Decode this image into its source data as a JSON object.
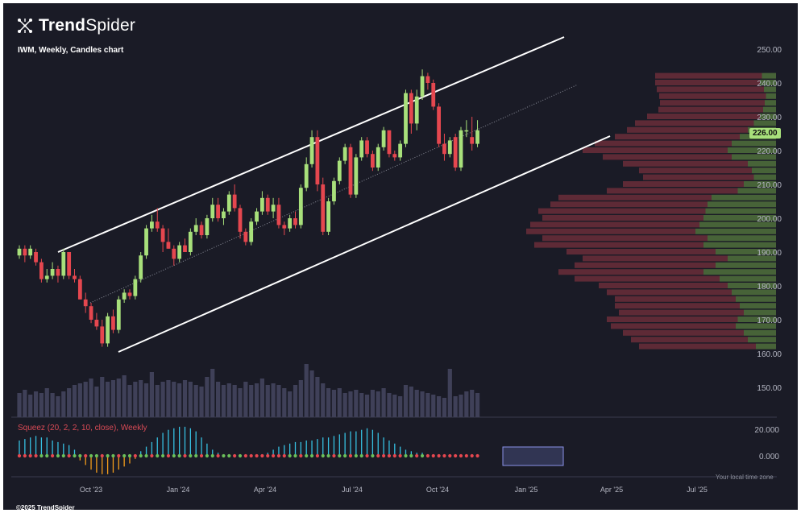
{
  "brand": {
    "name_bold": "Trend",
    "name_light": "Spider",
    "icon": "trendspider-logo-icon"
  },
  "chart_title": "IWM, Weekly, Candles chart",
  "indicator_label": "Squeez (20, 2, 2, 10, close), Weekly",
  "timezone_note": "Your local time zone",
  "copyright": "©2025 TrendSpider",
  "last_price_label": "226.00",
  "colors": {
    "background": "#1a1b26",
    "up": "#a8e07b",
    "down": "#e5474f",
    "channel": "#ffffff",
    "volume": "#3f4058",
    "squeeze_pos": "#36bfe0",
    "squeeze_neg": "#f39c1b",
    "dot_red": "#e5474f",
    "dot_green": "#6bbf5a"
  },
  "chart_data": {
    "type": "candlestick",
    "symbol": "IWM",
    "interval": "Weekly",
    "y_ticks": [
      "250.00",
      "240.00",
      "230.00",
      "220.00",
      "210.00",
      "200.00",
      "190.00",
      "180.00",
      "170.00",
      "160.00",
      "150.00"
    ],
    "x_ticks": [
      "Oct '23",
      "Jan '24",
      "Apr '24",
      "Jul '24",
      "Oct '24",
      "Jan '25",
      "Apr '25",
      "Jul '25"
    ],
    "ylim": [
      146,
      252
    ],
    "squeeze_ticks": [
      "20.000",
      "0.000"
    ],
    "candles": [
      {
        "o": 189,
        "h": 192,
        "l": 188,
        "c": 191
      },
      {
        "o": 191,
        "h": 192,
        "l": 187,
        "c": 189
      },
      {
        "o": 189,
        "h": 192,
        "l": 188,
        "c": 191
      },
      {
        "o": 190,
        "h": 191,
        "l": 186,
        "c": 187
      },
      {
        "o": 187,
        "h": 188,
        "l": 181,
        "c": 182
      },
      {
        "o": 182,
        "h": 185,
        "l": 181,
        "c": 183
      },
      {
        "o": 183,
        "h": 187,
        "l": 182,
        "c": 185
      },
      {
        "o": 185,
        "h": 186,
        "l": 181,
        "c": 183
      },
      {
        "o": 183,
        "h": 191,
        "l": 182,
        "c": 190
      },
      {
        "o": 190,
        "h": 190,
        "l": 182,
        "c": 183
      },
      {
        "o": 183,
        "h": 185,
        "l": 181,
        "c": 182
      },
      {
        "o": 182,
        "h": 183,
        "l": 176,
        "c": 176
      },
      {
        "o": 176,
        "h": 178,
        "l": 172,
        "c": 174
      },
      {
        "o": 174,
        "h": 175,
        "l": 169,
        "c": 170
      },
      {
        "o": 170,
        "h": 172,
        "l": 167,
        "c": 168
      },
      {
        "o": 168,
        "h": 170,
        "l": 162,
        "c": 163
      },
      {
        "o": 163,
        "h": 172,
        "l": 162,
        "c": 171
      },
      {
        "o": 171,
        "h": 173,
        "l": 166,
        "c": 167
      },
      {
        "o": 167,
        "h": 177,
        "l": 166,
        "c": 176
      },
      {
        "o": 176,
        "h": 179,
        "l": 175,
        "c": 178
      },
      {
        "o": 178,
        "h": 179,
        "l": 176,
        "c": 177
      },
      {
        "o": 177,
        "h": 183,
        "l": 176,
        "c": 182
      },
      {
        "o": 182,
        "h": 190,
        "l": 181,
        "c": 189
      },
      {
        "o": 189,
        "h": 198,
        "l": 188,
        "c": 197
      },
      {
        "o": 197,
        "h": 201,
        "l": 196,
        "c": 199
      },
      {
        "o": 199,
        "h": 203,
        "l": 196,
        "c": 197
      },
      {
        "o": 197,
        "h": 198,
        "l": 190,
        "c": 193
      },
      {
        "o": 193,
        "h": 197,
        "l": 191,
        "c": 191
      },
      {
        "o": 191,
        "h": 192,
        "l": 186,
        "c": 188
      },
      {
        "o": 188,
        "h": 193,
        "l": 187,
        "c": 192
      },
      {
        "o": 192,
        "h": 194,
        "l": 190,
        "c": 190
      },
      {
        "o": 190,
        "h": 197,
        "l": 189,
        "c": 196
      },
      {
        "o": 196,
        "h": 200,
        "l": 195,
        "c": 198
      },
      {
        "o": 198,
        "h": 199,
        "l": 194,
        "c": 195
      },
      {
        "o": 195,
        "h": 201,
        "l": 194,
        "c": 200
      },
      {
        "o": 200,
        "h": 206,
        "l": 199,
        "c": 204
      },
      {
        "o": 204,
        "h": 206,
        "l": 199,
        "c": 200
      },
      {
        "o": 200,
        "h": 203,
        "l": 198,
        "c": 202
      },
      {
        "o": 202,
        "h": 208,
        "l": 201,
        "c": 207
      },
      {
        "o": 207,
        "h": 210,
        "l": 202,
        "c": 203
      },
      {
        "o": 203,
        "h": 204,
        "l": 194,
        "c": 196
      },
      {
        "o": 196,
        "h": 197,
        "l": 192,
        "c": 193
      },
      {
        "o": 193,
        "h": 200,
        "l": 192,
        "c": 199
      },
      {
        "o": 199,
        "h": 203,
        "l": 198,
        "c": 202
      },
      {
        "o": 202,
        "h": 208,
        "l": 201,
        "c": 206
      },
      {
        "o": 206,
        "h": 207,
        "l": 201,
        "c": 202
      },
      {
        "o": 202,
        "h": 206,
        "l": 200,
        "c": 204
      },
      {
        "o": 204,
        "h": 206,
        "l": 197,
        "c": 198
      },
      {
        "o": 198,
        "h": 199,
        "l": 195,
        "c": 197
      },
      {
        "o": 197,
        "h": 201,
        "l": 196,
        "c": 200
      },
      {
        "o": 200,
        "h": 202,
        "l": 197,
        "c": 198
      },
      {
        "o": 198,
        "h": 210,
        "l": 197,
        "c": 209
      },
      {
        "o": 209,
        "h": 218,
        "l": 208,
        "c": 216
      },
      {
        "o": 216,
        "h": 226,
        "l": 215,
        "c": 224
      },
      {
        "o": 224,
        "h": 226,
        "l": 208,
        "c": 210
      },
      {
        "o": 210,
        "h": 212,
        "l": 195,
        "c": 196
      },
      {
        "o": 196,
        "h": 206,
        "l": 195,
        "c": 205
      },
      {
        "o": 205,
        "h": 212,
        "l": 204,
        "c": 211
      },
      {
        "o": 211,
        "h": 218,
        "l": 210,
        "c": 217
      },
      {
        "o": 217,
        "h": 222,
        "l": 216,
        "c": 221
      },
      {
        "o": 221,
        "h": 222,
        "l": 206,
        "c": 207
      },
      {
        "o": 207,
        "h": 219,
        "l": 206,
        "c": 218
      },
      {
        "o": 218,
        "h": 224,
        "l": 217,
        "c": 223
      },
      {
        "o": 223,
        "h": 224,
        "l": 218,
        "c": 219
      },
      {
        "o": 219,
        "h": 220,
        "l": 214,
        "c": 215
      },
      {
        "o": 215,
        "h": 222,
        "l": 214,
        "c": 221
      },
      {
        "o": 221,
        "h": 227,
        "l": 220,
        "c": 226
      },
      {
        "o": 226,
        "h": 226,
        "l": 218,
        "c": 219
      },
      {
        "o": 219,
        "h": 220,
        "l": 217,
        "c": 218
      },
      {
        "o": 218,
        "h": 223,
        "l": 217,
        "c": 222
      },
      {
        "o": 222,
        "h": 238,
        "l": 221,
        "c": 237
      },
      {
        "o": 237,
        "h": 238,
        "l": 225,
        "c": 228
      },
      {
        "o": 228,
        "h": 238,
        "l": 226,
        "c": 236
      },
      {
        "o": 236,
        "h": 244,
        "l": 235,
        "c": 242
      },
      {
        "o": 242,
        "h": 243,
        "l": 238,
        "c": 240
      },
      {
        "o": 240,
        "h": 241,
        "l": 232,
        "c": 233
      },
      {
        "o": 233,
        "h": 234,
        "l": 221,
        "c": 222
      },
      {
        "o": 222,
        "h": 225,
        "l": 217,
        "c": 219
      },
      {
        "o": 219,
        "h": 224,
        "l": 218,
        "c": 223
      },
      {
        "o": 224,
        "h": 225,
        "l": 214,
        "c": 215
      },
      {
        "o": 215,
        "h": 227,
        "l": 214,
        "c": 226
      },
      {
        "o": 226,
        "h": 229,
        "l": 224,
        "c": 226
      },
      {
        "o": 224,
        "h": 230,
        "l": 220,
        "c": 222
      },
      {
        "o": 222,
        "h": 229,
        "l": 221,
        "c": 226
      }
    ],
    "volume": [
      30,
      34,
      28,
      32,
      30,
      36,
      30,
      26,
      32,
      36,
      40,
      42,
      44,
      48,
      38,
      50,
      44,
      46,
      48,
      52,
      40,
      44,
      46,
      42,
      56,
      40,
      44,
      46,
      44,
      42,
      46,
      44,
      40,
      38,
      50,
      60,
      44,
      40,
      42,
      40,
      36,
      44,
      40,
      42,
      48,
      40,
      42,
      40,
      36,
      32,
      40,
      46,
      66,
      58,
      50,
      42,
      36,
      34,
      36,
      30,
      32,
      34,
      30,
      28,
      34,
      32,
      36,
      30,
      28,
      26,
      40,
      38,
      34,
      32,
      30,
      28,
      26,
      24,
      60,
      26,
      28,
      32,
      34,
      30
    ],
    "squeeze": [
      10,
      11,
      12,
      13,
      12,
      12,
      10,
      9,
      8,
      7,
      4,
      -3,
      -6,
      -9,
      -11,
      -12,
      -12,
      -11,
      -9,
      -7,
      -5,
      -2,
      3,
      6,
      9,
      12,
      15,
      17,
      18,
      19,
      19,
      18,
      16,
      12,
      8,
      4,
      2,
      1,
      1,
      0,
      -1,
      -1,
      -1,
      0,
      1,
      2,
      4,
      6,
      7,
      8,
      9,
      9,
      10,
      10,
      11,
      12,
      12,
      13,
      14,
      15,
      16,
      16,
      17,
      18,
      17,
      15,
      12,
      10,
      8,
      6,
      4,
      3,
      2,
      2,
      1,
      1,
      1,
      0,
      0,
      0,
      0,
      0,
      0,
      0
    ],
    "volume_profile": [
      {
        "p": 242,
        "b": 35,
        "r": 20
      },
      {
        "p": 240,
        "b": 40,
        "r": 20
      },
      {
        "p": 238,
        "b": 30,
        "r": 18
      },
      {
        "p": 236,
        "b": 25,
        "r": 15
      },
      {
        "p": 234,
        "b": 28,
        "r": 14
      },
      {
        "p": 232,
        "b": 32,
        "r": 16
      },
      {
        "p": 230,
        "b": 40,
        "r": 30
      },
      {
        "p": 228,
        "b": 55,
        "r": 45
      },
      {
        "p": 226,
        "b": 70,
        "r": 55
      },
      {
        "p": 224,
        "b": 90,
        "r": 70
      },
      {
        "p": 222,
        "b": 110,
        "r": 95
      },
      {
        "p": 220,
        "b": 120,
        "r": 110
      },
      {
        "p": 218,
        "b": 110,
        "r": 85
      },
      {
        "p": 216,
        "b": 70,
        "r": 60
      },
      {
        "p": 214,
        "b": 60,
        "r": 40
      },
      {
        "p": 212,
        "b": 55,
        "r": 35
      },
      {
        "p": 210,
        "b": 80,
        "r": 60
      },
      {
        "p": 208,
        "b": 95,
        "r": 80
      },
      {
        "p": 206,
        "b": 160,
        "r": 140
      },
      {
        "p": 204,
        "b": 170,
        "r": 150
      },
      {
        "p": 202,
        "b": 175,
        "r": 165
      },
      {
        "p": 200,
        "b": 180,
        "r": 160
      },
      {
        "p": 198,
        "b": 190,
        "r": 175
      },
      {
        "p": 196,
        "b": 200,
        "r": 180
      },
      {
        "p": 194,
        "b": 170,
        "r": 160
      },
      {
        "p": 192,
        "b": 180,
        "r": 170
      },
      {
        "p": 190,
        "b": 150,
        "r": 130
      },
      {
        "p": 188,
        "b": 120,
        "r": 110
      },
      {
        "p": 186,
        "b": 150,
        "r": 120
      },
      {
        "p": 184,
        "b": 180,
        "r": 140
      },
      {
        "p": 182,
        "b": 140,
        "r": 120
      },
      {
        "p": 180,
        "b": 120,
        "r": 90
      },
      {
        "p": 178,
        "b": 110,
        "r": 80
      },
      {
        "p": 176,
        "b": 100,
        "r": 70
      },
      {
        "p": 174,
        "b": 90,
        "r": 70
      },
      {
        "p": 172,
        "b": 80,
        "r": 65
      },
      {
        "p": 170,
        "b": 95,
        "r": 80
      },
      {
        "p": 168,
        "b": 100,
        "r": 75
      },
      {
        "p": 166,
        "b": 80,
        "r": 60
      },
      {
        "p": 164,
        "b": 70,
        "r": 50
      },
      {
        "p": 162,
        "b": 50,
        "r": 40
      }
    ]
  }
}
